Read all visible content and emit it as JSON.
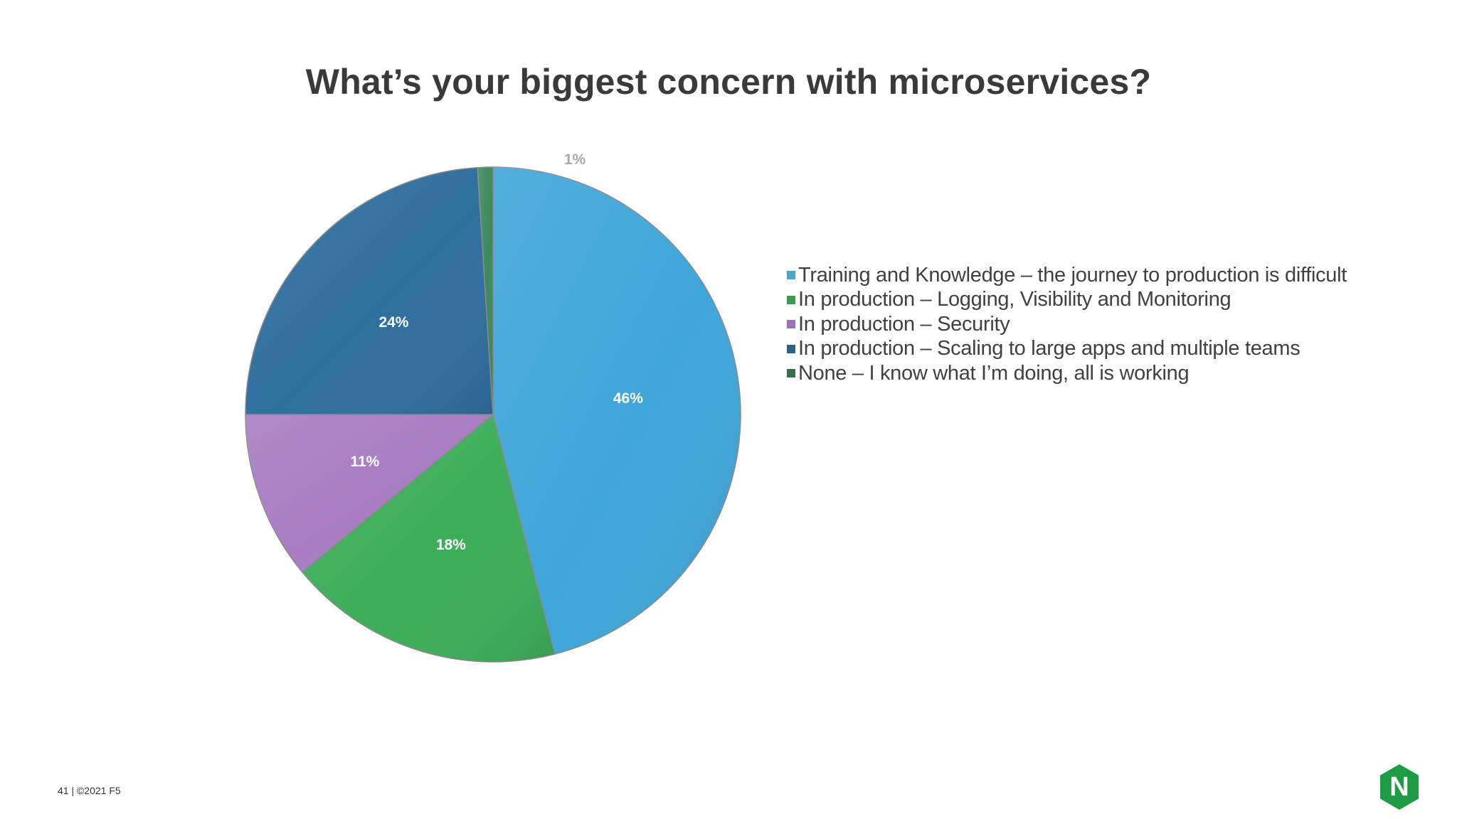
{
  "slide": {
    "title": "What’s your biggest concern with microservices?",
    "footer": "41 | ©2021 F5",
    "logo_text": "N"
  },
  "colors": {
    "training": "#3fa6d9",
    "logging": "#3cae5a",
    "security": "#a87dc2",
    "scaling": "#2f6f9e",
    "none": "#3d8a5e",
    "legend_training": "#4aa5c8",
    "legend_logging": "#3e9a4e",
    "legend_security": "#9b73b5",
    "legend_scaling": "#2f5f87",
    "legend_none": "#3b6e4e",
    "logo": "#1f9b46"
  },
  "chart_data": {
    "type": "pie",
    "title": "What’s your biggest concern with microservices?",
    "legend_position": "right",
    "series": [
      {
        "name": "Training and Knowledge – the journey to production is difficult",
        "value": 46,
        "label": "46%",
        "color": "#3fa6d9",
        "legend_color": "#4aa5c8"
      },
      {
        "name": "In production – Logging, Visibility and Monitoring",
        "value": 18,
        "label": "18%",
        "color": "#3cae5a",
        "legend_color": "#3e9a4e"
      },
      {
        "name": "In production – Security",
        "value": 11,
        "label": "11%",
        "color": "#a87dc2",
        "legend_color": "#9b73b5"
      },
      {
        "name": "In production – Scaling to large apps and multiple teams",
        "value": 24,
        "label": "24%",
        "color": "#2f6f9e",
        "legend_color": "#2f5f87"
      },
      {
        "name": "None – I know what I’m doing, all is working",
        "value": 1,
        "label": "1%",
        "color": "#3d8a5e",
        "legend_color": "#3b6e4e"
      }
    ]
  }
}
